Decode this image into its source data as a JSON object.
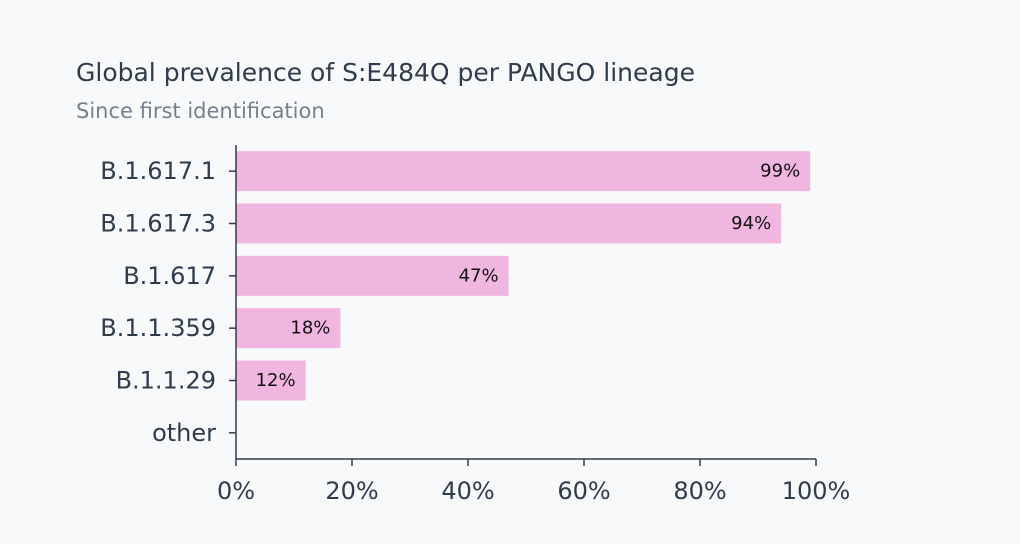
{
  "chart_data": {
    "type": "bar",
    "orientation": "horizontal",
    "title": "Global prevalence of S:E484Q per PANGO lineage",
    "subtitle": "Since first identification",
    "categories": [
      "B.1.617.1",
      "B.1.617.3",
      "B.1.617",
      "B.1.1.359",
      "B.1.1.29",
      "other"
    ],
    "values": [
      99,
      94,
      47,
      18,
      12,
      0
    ],
    "value_labels": [
      "99%",
      "94%",
      "47%",
      "18%",
      "12%",
      ""
    ],
    "x_ticks": [
      "0%",
      "20%",
      "40%",
      "60%",
      "80%",
      "100%"
    ],
    "xlim": [
      0,
      100
    ],
    "xlabel": "",
    "ylabel": "",
    "grid": false,
    "bar_color": "#f0b6df",
    "axis_color": "#2e3c4d"
  }
}
